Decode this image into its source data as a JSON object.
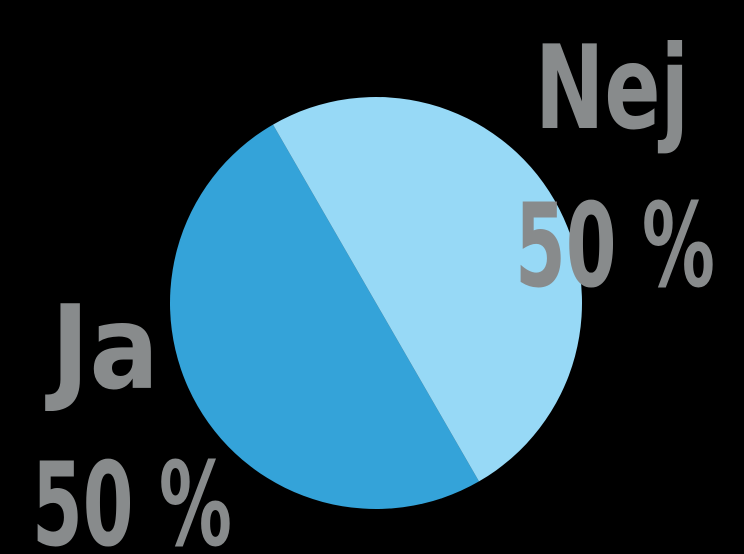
{
  "colors": {
    "background": "#000000",
    "label": "#888b8c"
  },
  "chart_data": {
    "type": "pie",
    "title": "",
    "legend": "none",
    "slices": [
      {
        "label": "Ja",
        "value": 50,
        "value_label": "50 %",
        "color": "#34a3d9"
      },
      {
        "label": "Nej",
        "value": 50,
        "value_label": "50 %",
        "color": "#97d9f6"
      }
    ]
  }
}
